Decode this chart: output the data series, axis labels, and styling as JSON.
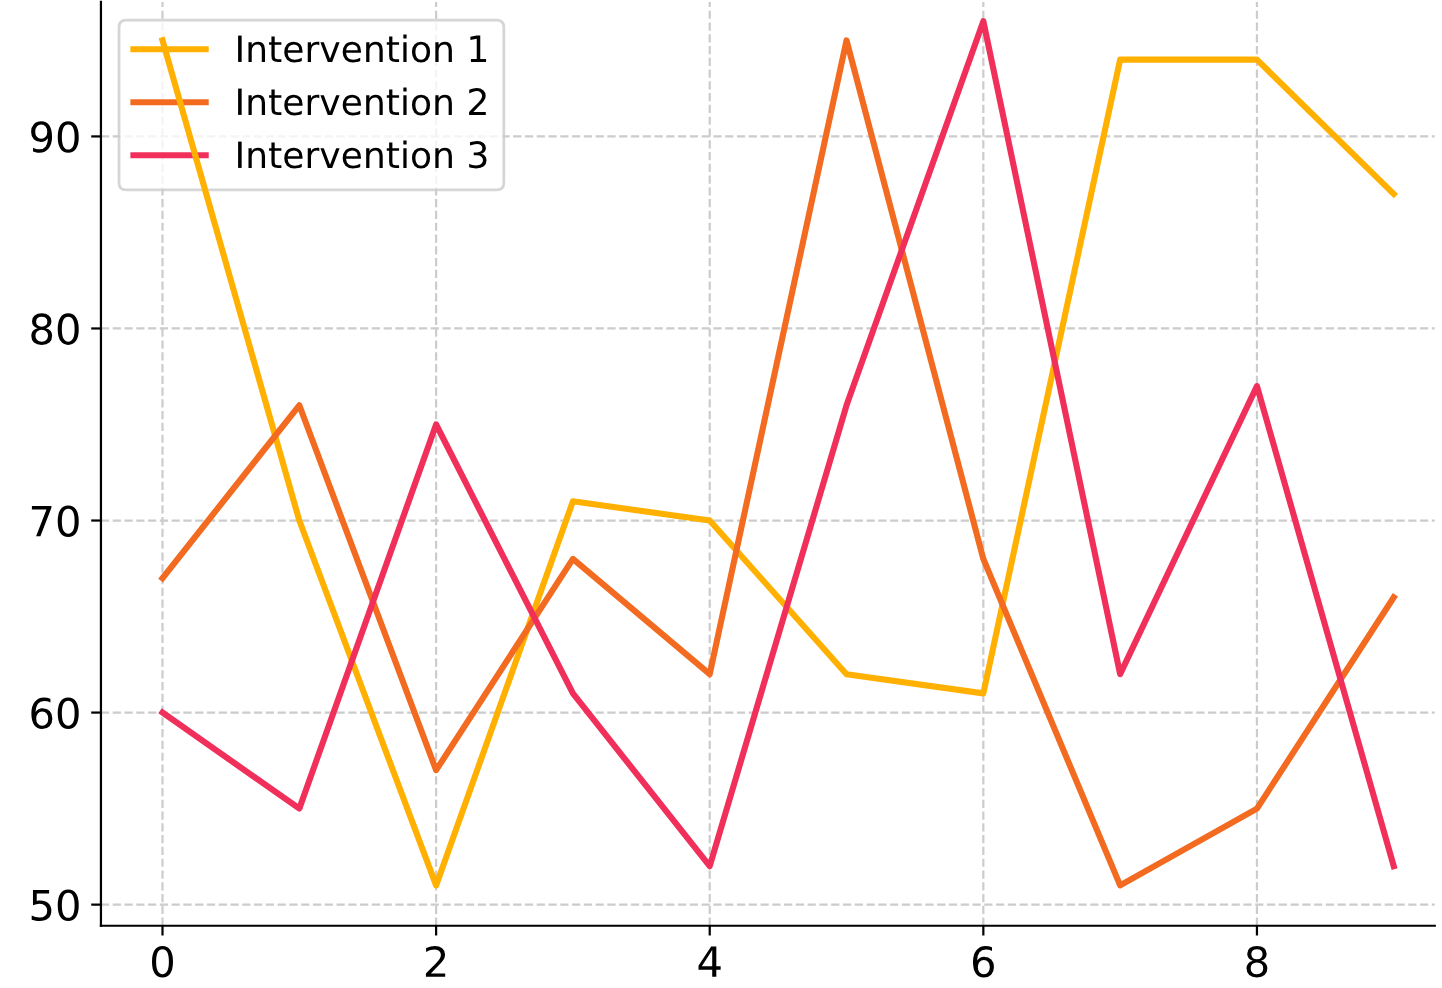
{
  "chart_data": {
    "type": "line",
    "x": [
      0,
      1,
      2,
      3,
      4,
      5,
      6,
      7,
      8,
      9
    ],
    "series": [
      {
        "name": "Intervention 1",
        "color": "#ffb000",
        "values": [
          95,
          70,
          51,
          71,
          70,
          62,
          61,
          94,
          94,
          87
        ]
      },
      {
        "name": "Intervention 2",
        "color": "#f26b21",
        "values": [
          67,
          76,
          57,
          68,
          62,
          95,
          68,
          51,
          55,
          66
        ]
      },
      {
        "name": "Intervention 3",
        "color": "#f0305a",
        "values": [
          60,
          55,
          75,
          61,
          52,
          76,
          96,
          62,
          77,
          52
        ]
      }
    ],
    "xlim": [
      -0.45,
      9.3
    ],
    "ylim": [
      48.9,
      97
    ],
    "xticks": [
      0,
      2,
      4,
      6,
      8
    ],
    "yticks": [
      50,
      60,
      70,
      80,
      90
    ],
    "grid": true,
    "legend": "top left",
    "marker": "none",
    "line_style": "solid"
  }
}
